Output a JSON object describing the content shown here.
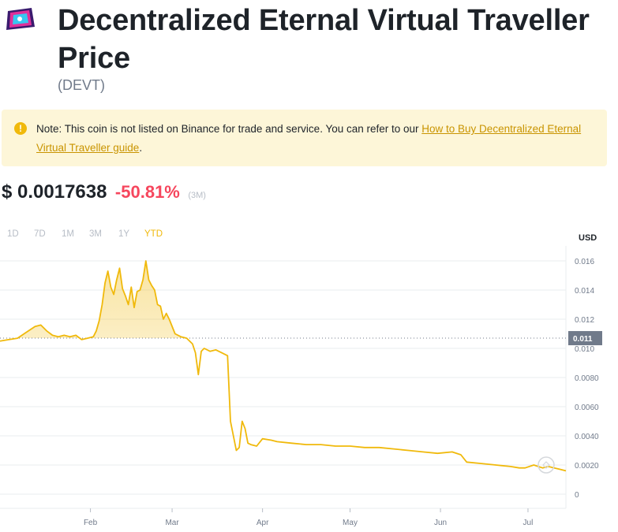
{
  "coin": {
    "title": "Decentralized Eternal Virtual Traveller Price",
    "symbol": "(DEVT)",
    "logo_icon": "devt-logo-icon"
  },
  "note": {
    "text": "Note: This coin is not listed on Binance for trade and service. You can refer to our ",
    "link_text": "How to Buy Decentralized Eternal Virtual Traveller guide",
    "end": ".",
    "icon": "warning-icon"
  },
  "price": {
    "value": "$ 0.0017638",
    "change": "-50.81%",
    "period": "(3M)"
  },
  "ranges": {
    "items": [
      "1D",
      "7D",
      "1M",
      "3M",
      "1Y",
      "YTD"
    ],
    "active": "YTD"
  },
  "chart_data": {
    "type": "area",
    "currency_label": "USD",
    "y_tick_labels": [
      "0.016",
      "0.014",
      "0.012",
      "0.010",
      "0.0080",
      "0.0060",
      "0.0040",
      "0.0020",
      "0"
    ],
    "y_tick_values": [
      0.016,
      0.014,
      0.012,
      0.01,
      0.008,
      0.006,
      0.004,
      0.002,
      0
    ],
    "ylim": [
      0,
      0.017
    ],
    "x_tick_labels": [
      "Feb",
      "Mar",
      "Apr",
      "May",
      "Jun",
      "Jul"
    ],
    "x_tick_days": [
      31,
      59,
      90,
      120,
      151,
      181
    ],
    "xlim_days": [
      0,
      194
    ],
    "current_label": "0.011",
    "current_value": 0.0107,
    "series": [
      {
        "color": "#f0b90b",
        "x_days": [
          0,
          3,
          6,
          9,
          12,
          14,
          16,
          18,
          20,
          22,
          24,
          26,
          28,
          30,
          32,
          33,
          34,
          35,
          36,
          37,
          38,
          39,
          40,
          41,
          42,
          43,
          44,
          45,
          46,
          47,
          48,
          49,
          50,
          51,
          52,
          53,
          54,
          55,
          56,
          57,
          58,
          60,
          62,
          64,
          66,
          67,
          68,
          69,
          70,
          72,
          74,
          76,
          78,
          79,
          80,
          81,
          82,
          83,
          84,
          85,
          86,
          88,
          90,
          93,
          95,
          100,
          105,
          110,
          115,
          120,
          125,
          130,
          135,
          140,
          145,
          150,
          155,
          158,
          160,
          165,
          170,
          175,
          178,
          180,
          183,
          186,
          188,
          190,
          192,
          194
        ],
        "y_values": [
          0.0105,
          0.0106,
          0.0107,
          0.0111,
          0.0115,
          0.0116,
          0.0112,
          0.0109,
          0.0108,
          0.0109,
          0.0108,
          0.0109,
          0.0106,
          0.0107,
          0.0108,
          0.0112,
          0.0119,
          0.013,
          0.0145,
          0.0153,
          0.0142,
          0.0137,
          0.0147,
          0.0155,
          0.0141,
          0.0136,
          0.013,
          0.0142,
          0.0128,
          0.0139,
          0.014,
          0.0147,
          0.016,
          0.0147,
          0.0143,
          0.014,
          0.013,
          0.0129,
          0.012,
          0.0124,
          0.012,
          0.011,
          0.0108,
          0.0107,
          0.0103,
          0.0097,
          0.0082,
          0.0098,
          0.01,
          0.0098,
          0.0099,
          0.0097,
          0.0095,
          0.005,
          0.004,
          0.003,
          0.0032,
          0.005,
          0.0045,
          0.0035,
          0.0034,
          0.0033,
          0.0038,
          0.0037,
          0.0036,
          0.0035,
          0.0034,
          0.0034,
          0.0033,
          0.0033,
          0.0032,
          0.0032,
          0.0031,
          0.003,
          0.0029,
          0.0028,
          0.0029,
          0.0027,
          0.0022,
          0.0021,
          0.002,
          0.0019,
          0.0018,
          0.0018,
          0.002,
          0.0018,
          0.0019,
          0.0018,
          0.0017,
          0.0016
        ]
      }
    ],
    "grid": "horizontal",
    "watermark_icon": "binance-watermark-icon"
  }
}
